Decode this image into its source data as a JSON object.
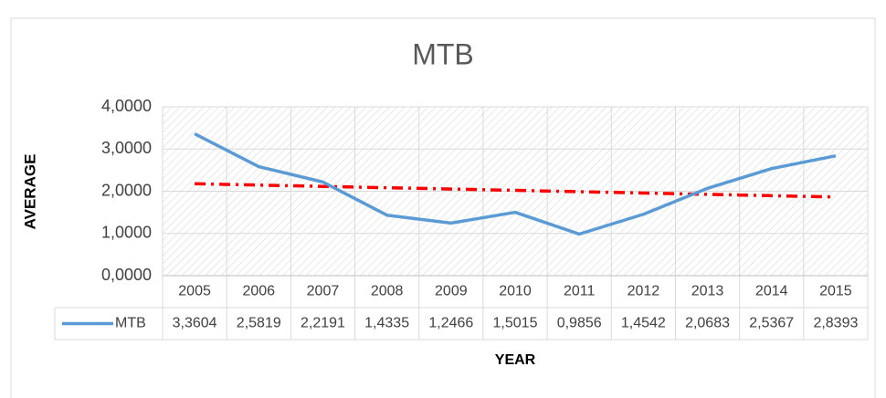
{
  "chart_data": {
    "type": "line",
    "title": "MTB",
    "x_label": "YEAR",
    "y_label": "AVERAGE",
    "categories": [
      "2005",
      "2006",
      "2007",
      "2008",
      "2009",
      "2010",
      "2011",
      "2012",
      "2013",
      "2014",
      "2015"
    ],
    "series": [
      {
        "name": "MTB",
        "color": "#5b9bd5",
        "values": [
          3.3604,
          2.5819,
          2.2191,
          1.4335,
          1.2466,
          1.5015,
          0.9856,
          1.4542,
          2.0683,
          2.5367,
          2.8393
        ],
        "value_labels": [
          "3,3604",
          "2,5819",
          "2,2191",
          "1,4335",
          "1,2466",
          "1,5015",
          "0,9856",
          "1,4542",
          "2,0683",
          "2,5367",
          "2,8393"
        ]
      }
    ],
    "trendline": {
      "kind": "linear",
      "color": "#ff0000"
    },
    "ylim": [
      0,
      4
    ],
    "yticks": [
      {
        "value": 0,
        "label": "0,0000"
      },
      {
        "value": 1,
        "label": "1,0000"
      },
      {
        "value": 2,
        "label": "2,0000"
      },
      {
        "value": 3,
        "label": "3,0000"
      },
      {
        "value": 4,
        "label": "4,0000"
      }
    ],
    "grid": true,
    "data_table": true
  }
}
